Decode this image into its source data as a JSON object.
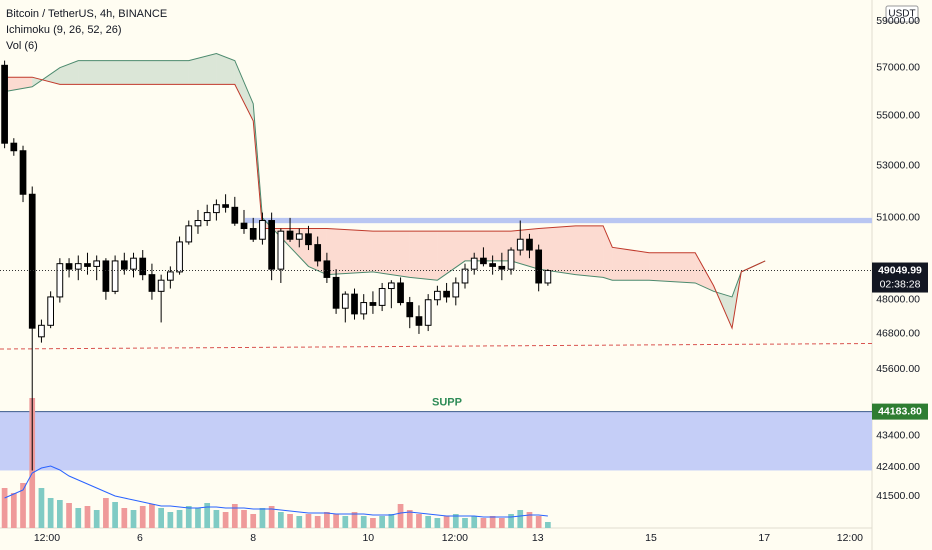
{
  "chart_data": {
    "type": "candlestick",
    "title": "Bitcoin / TetherUS, 4h, BINANCE",
    "indicators": [
      "Ichimoku (9, 26, 52, 26)",
      "Vol (6)"
    ],
    "currency": "USDT",
    "log_scale": true,
    "ylim": [
      40535,
      59930
    ],
    "yticks": [
      {
        "value": 59000,
        "label": "59000.00"
      },
      {
        "value": 57000,
        "label": "57000.00"
      },
      {
        "value": 55000,
        "label": "55000.00"
      },
      {
        "value": 53000,
        "label": "53000.00"
      },
      {
        "value": 51000,
        "label": "51000.00"
      },
      {
        "value": 48000,
        "label": "48000.00"
      },
      {
        "value": 46800,
        "label": "46800.00"
      },
      {
        "value": 45600,
        "label": "45600.00"
      },
      {
        "value": 43400,
        "label": "43400.00"
      },
      {
        "value": 42400,
        "label": "42400.00"
      },
      {
        "value": 41500,
        "label": "41500.00"
      }
    ],
    "xlim": [
      -0.5,
      94.2
    ],
    "xticks": [
      {
        "value": 4.6,
        "label": "12:00"
      },
      {
        "value": 14.7,
        "label": "6"
      },
      {
        "value": 27,
        "label": "8"
      },
      {
        "value": 39.5,
        "label": "10"
      },
      {
        "value": 48.9,
        "label": "12:00"
      },
      {
        "value": 57.9,
        "label": "13"
      },
      {
        "value": 70.2,
        "label": "15"
      },
      {
        "value": 82.5,
        "label": "17"
      },
      {
        "value": 91.8,
        "label": "12:00"
      }
    ],
    "open": [
      57100,
      53900,
      53600,
      51900,
      46700,
      47100,
      48100,
      49300,
      49100,
      49300,
      49200,
      49400,
      48300,
      49400,
      49100,
      49500,
      48900,
      48300,
      48700,
      49000,
      50100,
      50700,
      50900,
      51200,
      51500,
      51400,
      50800,
      50600,
      50200,
      50900,
      49100,
      50500,
      50200,
      50400,
      50000,
      49400,
      48800,
      47700,
      48200,
      47500,
      47900,
      47800,
      48400,
      48600,
      47900,
      47400,
      47100,
      48000,
      48300,
      48100,
      48600,
      49100,
      49500,
      49300,
      49200,
      49100,
      49800,
      50200,
      49800,
      48600
    ],
    "high": [
      57300,
      54100,
      53800,
      52200,
      47300,
      48300,
      49500,
      49500,
      49600,
      49700,
      49600,
      49500,
      49600,
      49700,
      49700,
      49800,
      49300,
      48900,
      49200,
      50300,
      50900,
      51300,
      51500,
      51700,
      51900,
      51800,
      51300,
      51000,
      51200,
      51200,
      50600,
      51000,
      50600,
      50700,
      50300,
      49700,
      49100,
      48300,
      48400,
      48200,
      48300,
      48600,
      48700,
      48800,
      48100,
      47800,
      48200,
      48500,
      48600,
      48800,
      49300,
      49700,
      49900,
      49600,
      49700,
      49900,
      50900,
      50400,
      50000,
      49100
    ],
    "low": [
      53700,
      53400,
      51600,
      42300,
      46500,
      47000,
      47900,
      48800,
      48700,
      48900,
      48700,
      48000,
      48200,
      48900,
      48800,
      48700,
      48000,
      47200,
      48400,
      48900,
      50000,
      50400,
      50700,
      50900,
      51200,
      50700,
      50400,
      50100,
      50000,
      48700,
      48600,
      50100,
      49900,
      49800,
      49200,
      48600,
      47500,
      47200,
      47300,
      47300,
      47500,
      47600,
      47700,
      47800,
      47000,
      46800,
      46900,
      47800,
      47900,
      47800,
      48400,
      48900,
      49200,
      48900,
      48700,
      48900,
      49600,
      49500,
      48300,
      48500
    ],
    "close": [
      53900,
      53600,
      51900,
      47000,
      47100,
      48100,
      49300,
      49100,
      49300,
      49200,
      49400,
      48300,
      49400,
      49100,
      49500,
      48900,
      48300,
      48700,
      49000,
      50100,
      50700,
      50900,
      51200,
      51500,
      51400,
      50800,
      50600,
      50200,
      50900,
      49100,
      50500,
      50200,
      50400,
      50000,
      49400,
      48800,
      47700,
      48200,
      47500,
      47900,
      47800,
      48400,
      48600,
      47900,
      47400,
      47100,
      48000,
      48300,
      48100,
      48600,
      49100,
      49500,
      49300,
      49200,
      49100,
      49800,
      50200,
      49800,
      48600,
      49049.99
    ],
    "volume": [
      40,
      35,
      45,
      130,
      40,
      30,
      28,
      25,
      20,
      22,
      18,
      30,
      26,
      20,
      18,
      22,
      24,
      20,
      16,
      18,
      22,
      20,
      25,
      18,
      16,
      24,
      18,
      14,
      20,
      22,
      16,
      14,
      12,
      14,
      12,
      16,
      14,
      12,
      16,
      12,
      10,
      12,
      14,
      24,
      18,
      14,
      12,
      10,
      12,
      14,
      10,
      12,
      10,
      12,
      10,
      14,
      18,
      16,
      12,
      6
    ],
    "vol_ma": [
      30,
      34,
      38,
      55,
      60,
      62,
      58,
      52,
      48,
      44,
      40,
      36,
      32,
      30,
      28,
      26,
      24,
      22,
      22,
      21,
      20,
      20,
      21,
      21,
      20,
      20,
      20,
      19,
      19,
      19,
      18,
      17,
      16,
      15,
      15,
      15,
      14,
      14,
      14,
      14,
      13,
      13,
      13,
      15,
      16,
      15,
      14,
      13,
      12,
      12,
      12,
      12,
      11,
      11,
      11,
      11,
      12,
      13,
      13,
      12
    ],
    "up_color": "#ffffff",
    "down_color": "#000000",
    "vol_up_color": "#80cbc4",
    "vol_down_color": "#ef9a9a",
    "cloud": {
      "x": [
        0,
        3,
        6,
        8,
        20,
        23,
        25,
        27,
        28,
        33,
        35,
        40,
        44,
        47,
        50,
        55,
        58,
        62,
        65,
        66,
        70,
        75,
        77,
        79,
        80,
        82.6
      ],
      "span_a": [
        56000,
        56200,
        57000,
        57300,
        57300,
        57600,
        57300,
        55500,
        51000,
        49200,
        48900,
        49000,
        48800,
        48700,
        49400,
        49400,
        49100,
        48900,
        48800,
        48700,
        48700,
        48600,
        48300,
        48100,
        49000,
        49400
      ],
      "span_b": [
        56600,
        56600,
        56300,
        56300,
        56300,
        56300,
        56300,
        54800,
        50600,
        50600,
        50600,
        50500,
        50500,
        50500,
        50500,
        50500,
        50600,
        50700,
        50700,
        49900,
        49700,
        49700,
        48500,
        47000,
        49000,
        49400
      ],
      "color_a": "#4c8a6e",
      "color_b": "#c0392b"
    },
    "resistance_band": [
      50800,
      51000
    ],
    "support_zone": {
      "label": "SUPP",
      "top": 44183.8,
      "bottom": 42300,
      "price_label": "44183.80"
    },
    "dashed_line": [
      46280,
      46470
    ],
    "last_price": {
      "value": 49049.99,
      "label": "49049.99",
      "timer": "02:38:28"
    }
  }
}
